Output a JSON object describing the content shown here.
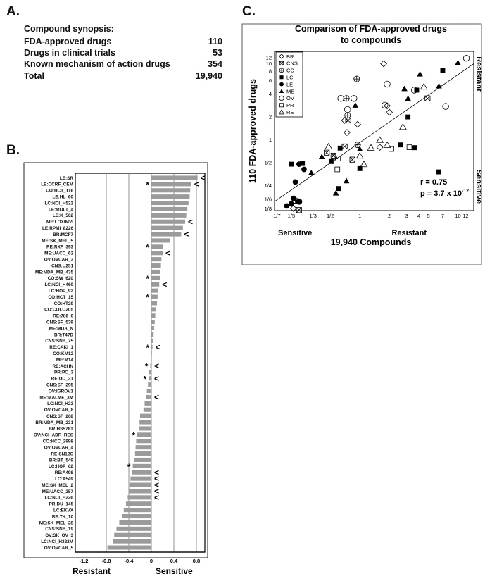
{
  "panel_a": {
    "letter": "A.",
    "heading": "Compound synopsis:",
    "rows": [
      {
        "label": "FDA-approved drugs",
        "value": "110"
      },
      {
        "label": "Drugs in clinical trials",
        "value": "53"
      },
      {
        "label": "Known mechanism of action drugs",
        "value": "354"
      }
    ],
    "total": {
      "label": "Total",
      "value": "19,940"
    }
  },
  "panel_b": {
    "letter": "B.",
    "bottom_left": "Resistant",
    "bottom_right": "Sensitive"
  },
  "panel_c": {
    "letter": "C.",
    "stats_r": "r = 0.75",
    "stats_p": "p = 3.7 x 10",
    "stats_p_exp": "-12",
    "x_left": "Sensitive",
    "x_right": "Resistant",
    "y_top": "Resistant",
    "y_bottom": "Sensitive"
  },
  "chart_data": [
    {
      "type": "bar",
      "orientation": "horizontal",
      "xlabel": "",
      "xlim": [
        -1.35,
        0.95
      ],
      "xticks": [
        -1.2,
        -0.8,
        -0.4,
        0,
        0.4,
        0.8
      ],
      "xtick_labels": [
        "-1.2",
        "-0.8",
        "-0.4",
        "0",
        "0.4",
        "0.8"
      ],
      "gridlines": [
        -0.8,
        -0.4,
        0,
        0.4,
        0.8
      ],
      "categories": [
        "LE:SR",
        "LE:CCRF_CEM",
        "CO:HCT_116",
        "LE:HL_60",
        "LC:NCI_H522",
        "LE:MOLT_4",
        "LE:K_562",
        "ME:LOXIMVI",
        "LE:RPMI_8226",
        "BR:MCF7",
        "ME:SK_MEL_5",
        "RE:RXF_393",
        "ME:UACC_62",
        "OV:OVCAR_3",
        "CNS:U251",
        "ME:MDA_MB_435",
        "CO:SW_620",
        "LC:NCI_H460",
        "LC:HOP_92",
        "CO:HCT_15",
        "CO:HT29",
        "CO:COLO205",
        "RE:786_0",
        "CNS:SF_539",
        "ME:MDA_N",
        "BR:T47D",
        "CNS:SNB_75",
        "RE:CAKI_1",
        "CO:KM12",
        "ME:M14",
        "RE:ACHN",
        "PR:PC_3",
        "RE:UO_31",
        "CNS:SF_295",
        "OV:IGROV1",
        "ME:MALME_3M",
        "LC:NCI_H23",
        "OV:OVCAR_8",
        "CNS:SF_268",
        "BR:MDA_MB_231",
        "BR:HS578T",
        "OV:NCI_ADR_RES",
        "CO:HCC_2998",
        "OV:OVCAR_4",
        "RE:SN12C",
        "BR:BT_549",
        "LC:HOP_62",
        "RE:A498",
        "LC:A549",
        "ME:SK_MEL_2",
        "ME:UACC_257",
        "LC:NCI_H226",
        "PR:DU_145",
        "LC:EKVX",
        "RE:TK_10",
        "ME:SK_MEL_28",
        "CNS:SNB_19",
        "OV:SK_OV_3",
        "LC:NCI_H322M",
        "OV:OVCAR_5"
      ],
      "values": [
        0.82,
        0.71,
        0.69,
        0.68,
        0.66,
        0.64,
        0.62,
        0.6,
        0.56,
        0.53,
        0.33,
        0.2,
        0.2,
        0.18,
        0.17,
        0.16,
        0.15,
        0.14,
        0.12,
        0.11,
        0.1,
        0.08,
        0.07,
        0.06,
        0.05,
        0.04,
        0.03,
        0.02,
        0.01,
        0.0,
        -0.02,
        -0.04,
        -0.05,
        -0.06,
        -0.08,
        -0.1,
        -0.12,
        -0.14,
        -0.2,
        -0.21,
        -0.22,
        -0.25,
        -0.27,
        -0.28,
        -0.29,
        -0.31,
        -0.33,
        -0.35,
        -0.37,
        -0.39,
        -0.4,
        -0.42,
        -0.45,
        -0.49,
        -0.52,
        -0.57,
        -0.62,
        -0.66,
        -0.68,
        -0.78
      ],
      "asterisk_rows": [
        "LE:CCRF_CEM",
        "RE:RXF_393",
        "CO:SW_620",
        "CO:HCT_15",
        "RE:CAKI_1",
        "RE:ACHN",
        "RE:UO_31",
        "OV:NCI_ADR_RES",
        "LC:HOP_62"
      ],
      "caret_rows": [
        "LE:SR",
        "LE:CCRF_CEM",
        "ME:LOXIMVI",
        "BR:MCF7",
        "ME:UACC_62",
        "LC:NCI_H460",
        "RE:CAKI_1",
        "RE:ACHN",
        "RE:UO_31",
        "ME:MALME_3M",
        "RE:A498",
        "LC:A549",
        "ME:SK_MEL_2",
        "ME:UACC_257",
        "LC:NCI_H226"
      ],
      "asterisk_symbol": "*",
      "caret_symbol": "<",
      "bar_color": "#9b9b9b"
    },
    {
      "type": "scatter",
      "title": "Comparison of FDA-approved drugs to compounds",
      "xlabel": "19,940 Compounds",
      "ylabel": "110 FDA-approved drugs",
      "scale": "log2",
      "xlim": [
        0.135,
        14.5
      ],
      "ylim": [
        0.118,
        14.5
      ],
      "xticks": [
        0.142857,
        0.2,
        0.333333,
        0.5,
        1,
        2,
        3,
        4,
        5,
        7,
        10,
        12
      ],
      "xtick_labels": [
        "1/7",
        "1/5",
        "1/3",
        "1/2",
        "1",
        "2",
        "3",
        "4",
        "5",
        "7",
        "10",
        "12"
      ],
      "yticks": [
        0.125,
        0.1667,
        0.25,
        0.5,
        1,
        2,
        4,
        6,
        8,
        10,
        12
      ],
      "ytick_labels": [
        "1/8",
        "1/6",
        "1/4",
        "1/2",
        "1",
        "2",
        "4",
        "6",
        "8",
        "10",
        "12"
      ],
      "fit_line": {
        "x": [
          0.135,
          14.5
        ],
        "y": [
          0.155,
          10.0
        ]
      },
      "legend": [
        {
          "code": "BR",
          "marker": "diamond"
        },
        {
          "code": "CNS",
          "marker": "boxx"
        },
        {
          "code": "CO",
          "marker": "circleplus"
        },
        {
          "code": "LC",
          "marker": "square-filled"
        },
        {
          "code": "LE",
          "marker": "circle-filled"
        },
        {
          "code": "ME",
          "marker": "triangle-filled"
        },
        {
          "code": "OV",
          "marker": "circle-open"
        },
        {
          "code": "PR",
          "marker": "square-open"
        },
        {
          "code": "RE",
          "marker": "triangle-open"
        }
      ],
      "series": [
        {
          "name": "BR",
          "points": [
            [
              1.75,
              10.0
            ],
            [
              0.21,
              0.126
            ],
            [
              0.74,
              1.25
            ],
            [
              0.7,
              1.8
            ],
            [
              1.9,
              2.8
            ],
            [
              2.0,
              2.3
            ],
            [
              1.6,
              0.8
            ],
            [
              0.95,
              1.6
            ]
          ]
        },
        {
          "name": "CNS",
          "points": [
            [
              0.76,
              1.8
            ],
            [
              0.46,
              0.68
            ],
            [
              0.54,
              0.62
            ],
            [
              0.7,
              0.82
            ],
            [
              4.9,
              3.5
            ],
            [
              0.24,
              0.12
            ],
            [
              0.84,
              0.55
            ]
          ]
        },
        {
          "name": "CO",
          "points": [
            [
              0.93,
              6.3
            ],
            [
              0.73,
              3.5
            ],
            [
              0.75,
              2.1
            ],
            [
              0.22,
              0.16
            ],
            [
              0.24,
              0.155
            ],
            [
              0.95,
              0.86
            ]
          ]
        },
        {
          "name": "LC",
          "points": [
            [
              0.2,
              0.48
            ],
            [
              0.61,
              0.23
            ],
            [
              3.1,
              2.0
            ],
            [
              2.6,
              0.86
            ],
            [
              3.6,
              0.79
            ],
            [
              7.0,
              8.1
            ],
            [
              0.63,
              0.78
            ],
            [
              1.0,
              0.42
            ],
            [
              0.51,
              0.52
            ],
            [
              3.8,
              4.5
            ],
            [
              0.26,
              0.49
            ],
            [
              6.4,
              0.38
            ]
          ]
        },
        {
          "name": "LE",
          "points": [
            [
              0.18,
              0.136
            ],
            [
              0.2,
              0.145
            ],
            [
              0.21,
              0.171
            ],
            [
              0.24,
              0.154
            ],
            [
              0.22,
              0.28
            ],
            [
              0.27,
              0.41
            ],
            [
              0.24,
              0.48
            ]
          ]
        },
        {
          "name": "ME",
          "points": [
            [
              0.41,
              0.6
            ],
            [
              1.0,
              0.76
            ],
            [
              0.57,
              0.2
            ],
            [
              0.73,
              0.29
            ],
            [
              0.32,
              0.37
            ],
            [
              0.9,
              2.85
            ],
            [
              2.85,
              4.7
            ],
            [
              3.1,
              3.5
            ],
            [
              10.0,
              10.3
            ],
            [
              4.1,
              7.3
            ],
            [
              6.4,
              5.1
            ]
          ]
        },
        {
          "name": "OV",
          "points": [
            [
              0.64,
              3.5
            ],
            [
              0.75,
              2.5
            ],
            [
              1.9,
              5.4
            ],
            [
              0.87,
              3.5
            ],
            [
              1.8,
              2.85
            ],
            [
              3.6,
              4.5
            ],
            [
              7.5,
              2.75
            ],
            [
              12.2,
              11.8
            ]
          ]
        },
        {
          "name": "PR",
          "points": [
            [
              2.1,
              0.76
            ],
            [
              3.2,
              0.8
            ],
            [
              0.6,
              0.57
            ],
            [
              0.59,
              0.41
            ]
          ]
        },
        {
          "name": "RE",
          "points": [
            [
              2.75,
              1.48
            ],
            [
              0.55,
              0.61
            ],
            [
              4.5,
              5.0
            ],
            [
              1.9,
              0.86
            ],
            [
              1.1,
              0.48
            ],
            [
              0.48,
              0.82
            ],
            [
              1.6,
              1.0
            ],
            [
              1.3,
              0.79
            ],
            [
              1.0,
              0.62
            ]
          ]
        }
      ]
    }
  ]
}
